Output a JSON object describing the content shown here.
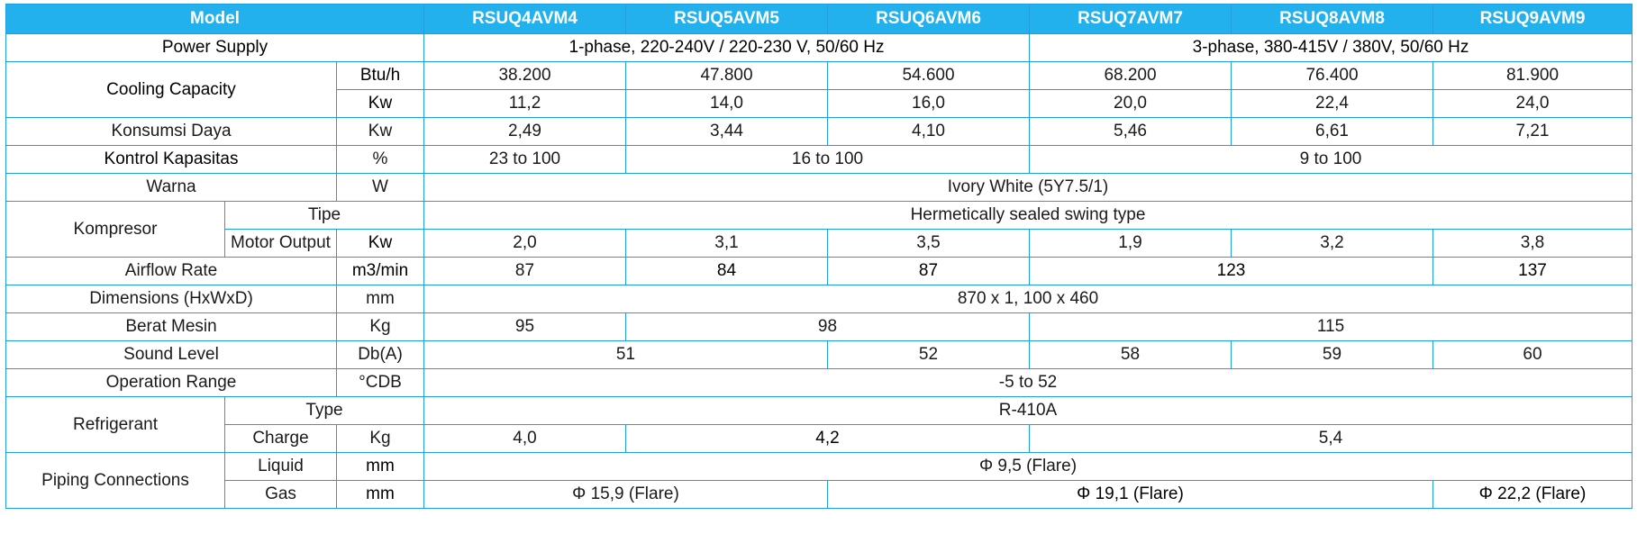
{
  "header": {
    "model_label": "Model",
    "models": [
      "RSUQ4AVM4",
      "RSUQ5AVM5",
      "RSUQ6AVM6",
      "RSUQ7AVM7",
      "RSUQ8AVM8",
      "RSUQ9AVM9"
    ]
  },
  "power_supply": {
    "label": "Power Supply",
    "single_phase": "1-phase, 220-240V / 220-230 V, 50/60 Hz",
    "three_phase": "3-phase, 380-415V / 380V, 50/60 Hz"
  },
  "cooling_capacity": {
    "label": "Cooling Capacity",
    "unit_btu": "Btu/h",
    "btu_values": [
      "38.200",
      "47.800",
      "54.600",
      "68.200",
      "76.400",
      "81.900"
    ],
    "unit_kw": "Kw",
    "kw_values": [
      "11,2",
      "14,0",
      "16,0",
      "20,0",
      "22,4",
      "24,0"
    ]
  },
  "power_consumption": {
    "label": "Konsumsi Daya",
    "unit": "Kw",
    "values": [
      "2,49",
      "3,44",
      "4,10",
      "5,46",
      "6,61",
      "7,21"
    ]
  },
  "capacity_control": {
    "label": "Kontrol Kapasitas",
    "unit": "%",
    "v1": "23 to 100",
    "v2": "16 to 100",
    "v3": "9 to 100"
  },
  "color": {
    "label": "Warna",
    "unit": "W",
    "value": "Ivory White (5Y7.5/1)"
  },
  "compressor": {
    "label": "Kompresor",
    "type_label": "Tipe",
    "type_value": "Hermetically sealed swing type",
    "motor_label": "Motor Output",
    "motor_unit": "Kw",
    "motor_values": [
      "2,0",
      "3,1",
      "3,5",
      "1,9",
      "3,2",
      "3,8"
    ]
  },
  "airflow": {
    "label": "Airflow Rate",
    "unit": "m3/min",
    "v1": "87",
    "v2": "84",
    "v3": "87",
    "v4": "123",
    "v5": "137"
  },
  "dimensions": {
    "label": "Dimensions (HxWxD)",
    "unit": "mm",
    "value": "870 x 1, 100 x 460"
  },
  "weight": {
    "label": "Berat Mesin",
    "unit": "Kg",
    "v1": "95",
    "v2": "98",
    "v3": "115"
  },
  "sound": {
    "label": "Sound Level",
    "unit": "Db(A)",
    "v1": "51",
    "v2": "52",
    "v3": "58",
    "v4": "59",
    "v5": "60"
  },
  "operation_range": {
    "label": "Operation Range",
    "unit": "°CDB",
    "value": "-5 to 52"
  },
  "refrigerant": {
    "label": "Refrigerant",
    "type_label": "Type",
    "type_value": "R-410A",
    "charge_label": "Charge",
    "charge_unit": "Kg",
    "charge_v1": "4,0",
    "charge_v2": "4,2",
    "charge_v3": "5,4"
  },
  "piping": {
    "label": "Piping Connections",
    "liquid_label": "Liquid",
    "liquid_unit": "mm",
    "liquid_value": "Φ 9,5 (Flare)",
    "gas_label": "Gas",
    "gas_unit": "mm",
    "gas_v1": "Φ  15,9 (Flare)",
    "gas_v2": "Φ  19,1 (Flare)",
    "gas_v3": "Φ  22,2 (Flare)"
  },
  "colors": {
    "header_background": "#22b1ec",
    "header_text": "#ffffff",
    "border": "#1f9fe0"
  }
}
